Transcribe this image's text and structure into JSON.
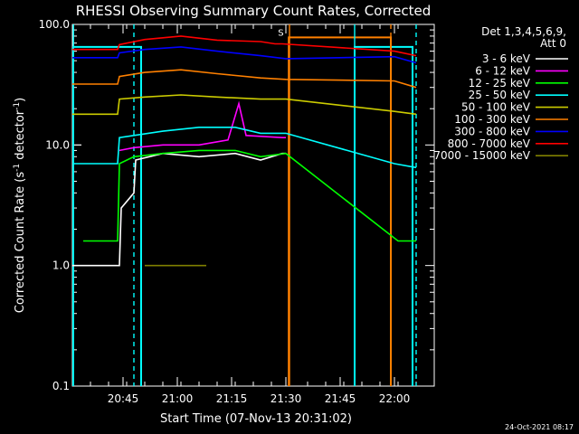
{
  "chart_data": {
    "type": "line",
    "title": "RHESSI Observing Summary Count Rates, Corrected",
    "xlabel": "Start Time (07-Nov-13 20:31:02)",
    "ylabel_main": "Corrected Count Rate (s",
    "ylabel_sup1": "-1",
    "ylabel_mid": " detector",
    "ylabel_sup2": "-1",
    "ylabel_end": ")",
    "yscale": "log",
    "ylim": [
      0.1,
      100
    ],
    "x_unit": "minutes since 20:31:02",
    "xlim": [
      0,
      100
    ],
    "x_ticks": [
      {
        "value": 14,
        "label": "20:45"
      },
      {
        "value": 29,
        "label": "21:00"
      },
      {
        "value": 44,
        "label": "21:15"
      },
      {
        "value": 59,
        "label": "21:30"
      },
      {
        "value": 74,
        "label": "21:45"
      },
      {
        "value": 89,
        "label": "22:00"
      }
    ],
    "y_ticks": [
      {
        "value": 0.1,
        "label": "0.1"
      },
      {
        "value": 1,
        "label": "1.0"
      },
      {
        "value": 10,
        "label": "10.0"
      },
      {
        "value": 100,
        "label": "100.0"
      }
    ],
    "legend_header_1": "Det 1,3,4,5,6,9,",
    "legend_header_2": "Att 0",
    "series": [
      {
        "name": "3 - 6 keV",
        "color": "#ffffff",
        "points": [
          [
            0,
            1.0
          ],
          [
            13,
            1.0
          ],
          [
            13.5,
            3.0
          ],
          [
            17,
            4.0
          ],
          [
            17.5,
            7.5
          ],
          [
            25,
            8.5
          ],
          [
            35,
            8.0
          ],
          [
            45,
            8.5
          ],
          [
            52,
            7.5
          ],
          [
            58,
            8.5
          ],
          [
            59,
            8.5
          ]
        ]
      },
      {
        "name": "6 - 12 keV",
        "color": "#ff00ff",
        "points": [
          [
            13,
            9.0
          ],
          [
            17,
            9.5
          ],
          [
            25,
            10.0
          ],
          [
            35,
            10.0
          ],
          [
            43,
            11.0
          ],
          [
            46,
            22.0
          ],
          [
            48,
            12.0
          ],
          [
            58,
            11.5
          ],
          [
            59,
            11.5
          ]
        ]
      },
      {
        "name": "12 - 25 keV",
        "color": "#00ff00",
        "points": [
          [
            3,
            1.6
          ],
          [
            12.5,
            1.6
          ],
          [
            13,
            7.0
          ],
          [
            17,
            8.0
          ],
          [
            25,
            8.5
          ],
          [
            35,
            9.0
          ],
          [
            45,
            9.0
          ],
          [
            52,
            8.0
          ],
          [
            59,
            8.5
          ],
          [
            90,
            1.6
          ],
          [
            95,
            1.6
          ]
        ]
      },
      {
        "name": "25 - 50 keV",
        "color": "#00ffff",
        "points": [
          [
            0,
            7.0
          ],
          [
            12.5,
            7.0
          ],
          [
            13,
            11.5
          ],
          [
            25,
            13.0
          ],
          [
            35,
            14.0
          ],
          [
            45,
            14.0
          ],
          [
            52,
            12.5
          ],
          [
            59,
            12.5
          ],
          [
            89,
            7.0
          ],
          [
            95,
            6.5
          ]
        ]
      },
      {
        "name": "50 - 100 keV",
        "color": "#cccc00",
        "points": [
          [
            0,
            18.0
          ],
          [
            12.5,
            18.0
          ],
          [
            13,
            24.0
          ],
          [
            20,
            25.0
          ],
          [
            30,
            26.0
          ],
          [
            40,
            25.0
          ],
          [
            52,
            24.0
          ],
          [
            59,
            24.0
          ],
          [
            89,
            19.0
          ],
          [
            95,
            18.0
          ]
        ]
      },
      {
        "name": "100 - 300 keV",
        "color": "#ff8000",
        "points": [
          [
            0,
            32.0
          ],
          [
            12.5,
            32.0
          ],
          [
            13,
            37.0
          ],
          [
            20,
            40.0
          ],
          [
            30,
            42.0
          ],
          [
            40,
            39.0
          ],
          [
            52,
            36.0
          ],
          [
            59,
            35.0
          ],
          [
            89,
            34.0
          ],
          [
            95,
            30.0
          ]
        ]
      },
      {
        "name": "300 - 800 keV",
        "color": "#0000ff",
        "points": [
          [
            0,
            53.0
          ],
          [
            12.5,
            53.0
          ],
          [
            13,
            58.0
          ],
          [
            20,
            62.0
          ],
          [
            30,
            65.0
          ],
          [
            40,
            60.0
          ],
          [
            52,
            55.0
          ],
          [
            59,
            52.0
          ],
          [
            89,
            54.0
          ],
          [
            95,
            48.0
          ]
        ]
      },
      {
        "name": "800 - 7000 keV",
        "color": "#ff0000",
        "points": [
          [
            0,
            62.0
          ],
          [
            12.5,
            62.0
          ],
          [
            13,
            68.0
          ],
          [
            20,
            75.0
          ],
          [
            30,
            80.0
          ],
          [
            40,
            74.0
          ],
          [
            52,
            72.0
          ],
          [
            56,
            69.0
          ],
          [
            58,
            69.0
          ],
          [
            89,
            60.0
          ],
          [
            95,
            55.0
          ]
        ]
      },
      {
        "name": "7000 - 15000 keV",
        "color": "#808000",
        "points": [
          [
            20,
            1.0
          ],
          [
            37,
            1.0
          ]
        ]
      }
    ],
    "att_state": {
      "color": "#ff8000",
      "label": "S",
      "points": [
        [
          0,
          0.09
        ],
        [
          59.8,
          0.09
        ],
        [
          59.8,
          78
        ],
        [
          88,
          78
        ],
        [
          88,
          0.09
        ],
        [
          100,
          0.09
        ]
      ]
    },
    "saa_bars": {
      "color": "#00ffff",
      "points": [
        [
          0,
          0.09
        ],
        [
          0,
          65
        ],
        [
          19,
          65
        ],
        [
          19,
          0.09
        ],
        [
          78,
          0.09
        ],
        [
          78,
          65
        ],
        [
          94,
          65
        ],
        [
          94,
          0.09
        ]
      ]
    },
    "vlines": [
      {
        "x": 0.3,
        "color": "#00ffff",
        "style": "solid"
      },
      {
        "x": 17,
        "color": "#00ffff",
        "style": "dashed"
      },
      {
        "x": 60,
        "color": "#ff8000",
        "style": "solid"
      },
      {
        "x": 78,
        "color": "#00ffff",
        "style": "solid"
      },
      {
        "x": 88,
        "color": "#ff8000",
        "style": "dashed"
      },
      {
        "x": 95,
        "color": "#00ffff",
        "style": "dashed"
      }
    ],
    "grid": false,
    "legend_position": "top-right"
  },
  "footer": {
    "timestamp": "24-Oct-2021 08:17"
  }
}
